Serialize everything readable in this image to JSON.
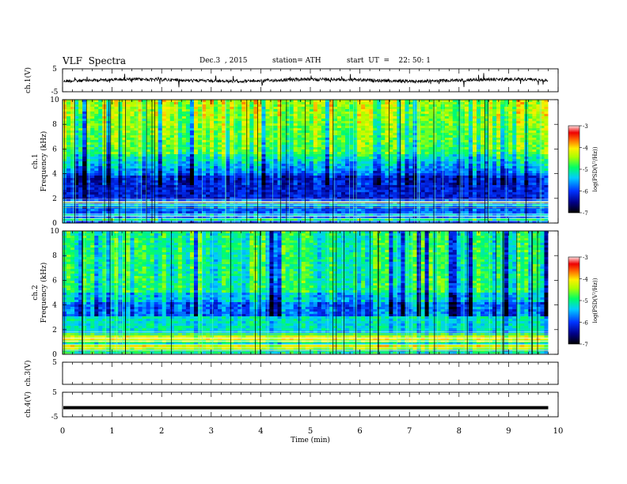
{
  "header": {
    "title": "VLF  Spectra",
    "date": "Dec.3  , 2015",
    "station": "station= ATH",
    "start_ut": "start  UT  =    22: 50: 1"
  },
  "chart_data": [
    {
      "type": "line",
      "panel": "ch1-waveform",
      "ylabel": "ch.1(V)",
      "yticks": [
        "5",
        "-5"
      ],
      "ylim": [
        -5,
        5
      ],
      "baseline_value": 0,
      "x_units": "min",
      "xlim": [
        0,
        10
      ]
    },
    {
      "type": "heatmap",
      "panel": "ch1-spectrogram",
      "ylabel_channel": "ch.1",
      "ylabel": "Frequency  (kHz)",
      "yticks": [
        "10",
        "8",
        "6",
        "4",
        "2",
        "0"
      ],
      "ylim": [
        0,
        10
      ],
      "xlim": [
        0,
        9.8
      ],
      "colorbar": {
        "label": "log(PSD(V²/Hz))",
        "ticks": [
          "-3",
          "-4",
          "-5",
          "-6",
          "-7"
        ],
        "range": [
          -7,
          -3
        ]
      }
    },
    {
      "type": "heatmap",
      "panel": "ch2-spectrogram",
      "ylabel_channel": "ch.2",
      "ylabel": "Frequency  (kHz)",
      "yticks": [
        "10",
        "8",
        "6",
        "4",
        "2",
        "0"
      ],
      "ylim": [
        0,
        10
      ],
      "xlim": [
        0,
        9.8
      ],
      "colorbar": {
        "label": "log(PSD(V²/Hz))",
        "ticks": [
          "-3",
          "-4",
          "-5",
          "-6",
          "-7"
        ],
        "range": [
          -7,
          -3
        ]
      }
    },
    {
      "type": "line",
      "panel": "ch3-waveform",
      "ylabel": "ch.3(V)",
      "yticks": [
        "5"
      ],
      "ylim": [
        -5,
        5
      ]
    },
    {
      "type": "line",
      "panel": "ch4-waveform",
      "ylabel": "ch.4(V)",
      "yticks": [
        "5",
        "-5"
      ],
      "ylim": [
        -5,
        5
      ],
      "baseline_value": -1.3
    }
  ],
  "x_axis": {
    "label": "Time  (min)",
    "ticks": [
      "0",
      "1",
      "2",
      "3",
      "4",
      "5",
      "6",
      "7",
      "8",
      "9",
      "10"
    ],
    "range": [
      0,
      10
    ]
  }
}
